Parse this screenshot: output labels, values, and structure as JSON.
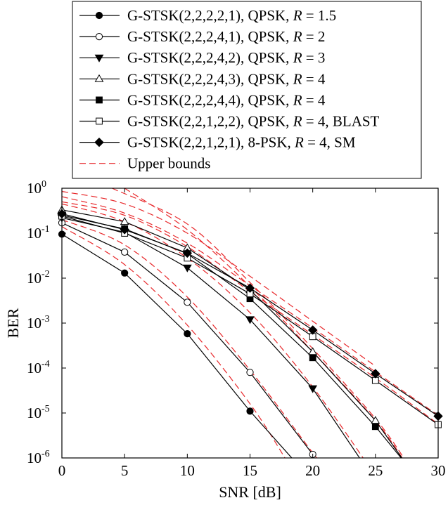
{
  "chart_data": {
    "type": "line",
    "title": "",
    "xlabel": "SNR [dB]",
    "ylabel": "BER",
    "xlim": [
      0,
      30
    ],
    "ylim": [
      1e-06,
      1
    ],
    "yscale": "log",
    "grid": false,
    "legend_position": "top",
    "xticks": [
      "0",
      "5",
      "10",
      "15",
      "20",
      "25",
      "30"
    ],
    "yticks": [
      {
        "base": "10",
        "exp": "0",
        "value": 1
      },
      {
        "base": "10",
        "exp": "-1",
        "value": 0.1
      },
      {
        "base": "10",
        "exp": "-2",
        "value": 0.01
      },
      {
        "base": "10",
        "exp": "-3",
        "value": 0.001
      },
      {
        "base": "10",
        "exp": "-4",
        "value": 0.0001
      },
      {
        "base": "10",
        "exp": "-5",
        "value": 1e-05
      },
      {
        "base": "10",
        "exp": "-6",
        "value": 1e-06
      }
    ],
    "series": [
      {
        "label_prefix": "G-STSK(2,2,2,2,1), QPSK, ",
        "label_r": "R",
        "label_suffix": " = 1.5",
        "marker": "circle-filled",
        "x": [
          0,
          5,
          10,
          15,
          20
        ],
        "y": [
          0.095,
          0.013,
          0.00058,
          1.1e-05,
          3e-07
        ]
      },
      {
        "label_prefix": "G-STSK(2,2,2,4,1), QPSK, ",
        "label_r": "R",
        "label_suffix": " = 2",
        "marker": "circle-open",
        "x": [
          0,
          5,
          10,
          15,
          20
        ],
        "y": [
          0.17,
          0.038,
          0.0029,
          8e-05,
          1.2e-06
        ]
      },
      {
        "label_prefix": "G-STSK(2,2,2,4,2), QPSK, ",
        "label_r": "R",
        "label_suffix": " = 3",
        "marker": "triangle-down-filled",
        "x": [
          0,
          5,
          10,
          15,
          20,
          25
        ],
        "y": [
          0.22,
          0.105,
          0.017,
          0.0012,
          3.5e-05,
          3e-07
        ]
      },
      {
        "label_prefix": "G-STSK(2,2,2,4,3), QPSK, ",
        "label_r": "R",
        "label_suffix": " = 4",
        "marker": "triangle-up-open",
        "x": [
          0,
          5,
          10,
          15,
          20,
          25,
          27.5
        ],
        "y": [
          0.33,
          0.18,
          0.047,
          0.0055,
          0.00023,
          6.8e-06,
          7e-07
        ]
      },
      {
        "label_prefix": "G-STSK(2,2,2,4,4), QPSK, ",
        "label_r": "R",
        "label_suffix": " = 4",
        "marker": "square-filled",
        "x": [
          0,
          5,
          10,
          15,
          20,
          25,
          27.5
        ],
        "y": [
          0.25,
          0.125,
          0.035,
          0.0035,
          0.00017,
          5e-06,
          7e-07
        ]
      },
      {
        "label_prefix": "G-STSK(2,2,1,2,2), QPSK, ",
        "label_r": "R",
        "label_suffix": " = 4, BLAST",
        "marker": "square-open",
        "x": [
          0,
          5,
          10,
          15,
          20,
          25,
          30
        ],
        "y": [
          0.24,
          0.1,
          0.028,
          0.0045,
          0.0005,
          5.3e-05,
          5.5e-06
        ]
      },
      {
        "label_prefix": "G-STSK(2,2,1,2,1), 8-PSK, ",
        "label_r": "R",
        "label_suffix": " = 4, SM",
        "marker": "diamond-filled",
        "x": [
          0,
          5,
          10,
          15,
          20,
          25,
          30
        ],
        "y": [
          0.27,
          0.12,
          0.036,
          0.006,
          0.0007,
          7.5e-05,
          8.5e-06
        ]
      }
    ],
    "bounds": {
      "label": "Upper bounds",
      "color": "#e8282b",
      "curves": [
        {
          "x": [
            0,
            5,
            10,
            15,
            18
          ],
          "y": [
            0.14,
            0.02,
            0.0009,
            1.6e-05,
            8e-07
          ]
        },
        {
          "x": [
            0,
            5,
            10,
            15,
            20,
            21
          ],
          "y": [
            0.2,
            0.055,
            0.0038,
            9e-05,
            1.3e-06,
            6e-07
          ]
        },
        {
          "x": [
            0,
            5,
            10,
            15,
            20,
            25
          ],
          "y": [
            0.45,
            0.18,
            0.028,
            0.0017,
            3.8e-05,
            4e-07
          ]
        },
        {
          "x": [
            5,
            10,
            15,
            20,
            25,
            27.5
          ],
          "y": [
            1.0,
            0.12,
            0.0065,
            0.00023,
            6.8e-06,
            7e-07
          ]
        },
        {
          "x": [
            4,
            10,
            15,
            20,
            25,
            27.5
          ],
          "y": [
            1.0,
            0.16,
            0.008,
            0.00027,
            7.5e-06,
            8e-07
          ]
        },
        {
          "x": [
            0,
            5,
            10,
            15,
            20,
            25,
            30
          ],
          "y": [
            0.5,
            0.25,
            0.05,
            0.005,
            0.00055,
            6e-05,
            5.7e-06
          ]
        },
        {
          "x": [
            0,
            5,
            10,
            15,
            20,
            25,
            30
          ],
          "y": [
            0.65,
            0.28,
            0.06,
            0.0068,
            0.00078,
            8.2e-05,
            8.9e-06
          ]
        },
        {
          "x": [
            0,
            5,
            10,
            15,
            20,
            25
          ],
          "y": [
            0.85,
            0.45,
            0.1,
            0.011,
            0.0011,
            0.00011
          ]
        }
      ]
    }
  }
}
